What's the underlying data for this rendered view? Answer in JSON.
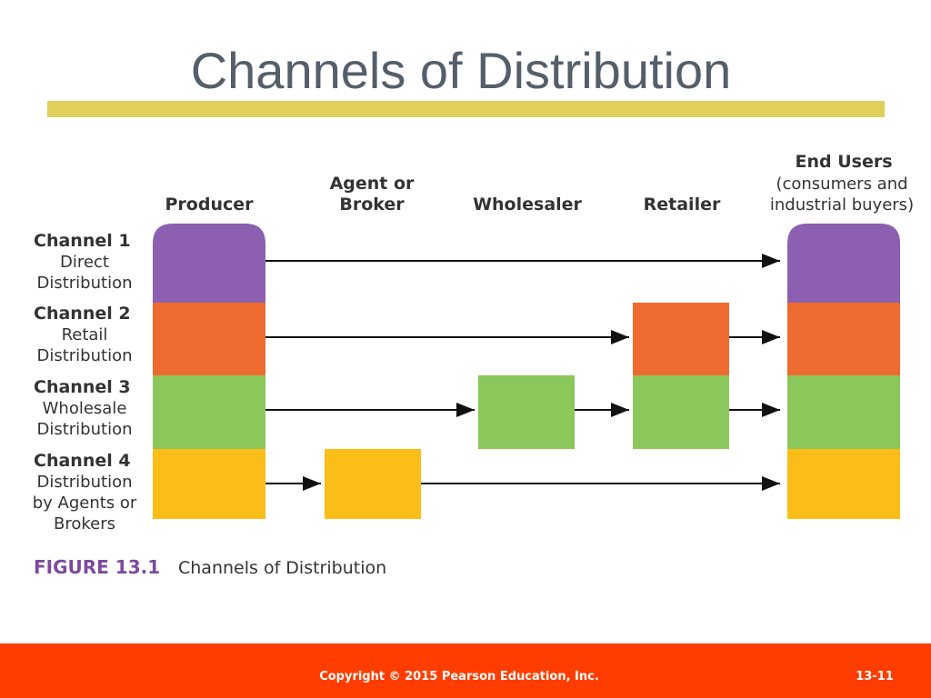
{
  "title": "Channels of Distribution",
  "columns": {
    "producer": "Producer",
    "agent": [
      "Agent or",
      "Broker"
    ],
    "wholesaler": "Wholesaler",
    "retailer": "Retailer",
    "end_users": "End Users",
    "end_users_note": [
      "(consumers and",
      "industrial buyers)"
    ]
  },
  "channels": [
    {
      "name": "Channel 1",
      "desc": [
        "Direct",
        "Distribution"
      ]
    },
    {
      "name": "Channel 2",
      "desc": [
        "Retail",
        "Distribution"
      ]
    },
    {
      "name": "Channel 3",
      "desc": [
        "Wholesale",
        "Distribution"
      ]
    },
    {
      "name": "Channel 4",
      "desc": [
        "Distribution",
        "by Agents or",
        "Brokers"
      ]
    }
  ],
  "figure": {
    "number": "FIGURE 13.1",
    "caption": "Channels of Distribution"
  },
  "footer": {
    "copyright": "Copyright © 2015 Pearson Education, Inc.",
    "page": "13-11"
  }
}
